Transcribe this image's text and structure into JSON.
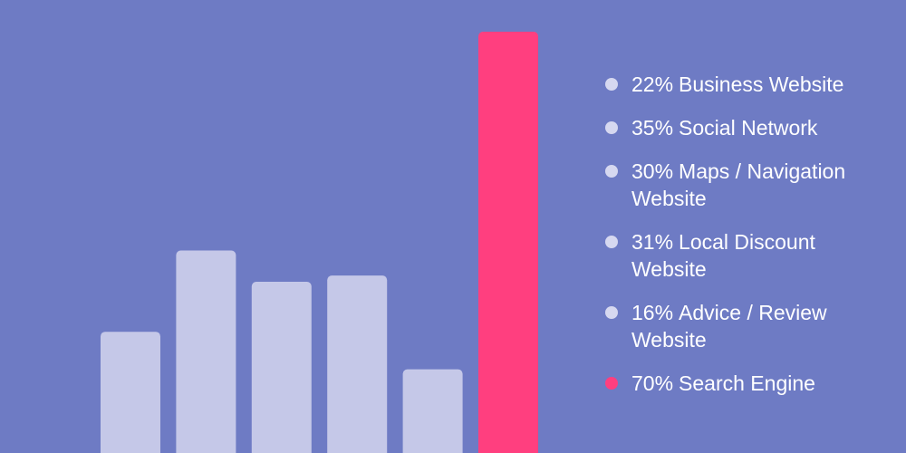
{
  "chart_data": {
    "type": "bar",
    "categories": [
      "Business Website",
      "Social Network",
      "Maps / Navigation Website",
      "Local Discount Website",
      "Advice / Review Website",
      "Search Engine"
    ],
    "values": [
      22,
      35,
      30,
      31,
      16,
      70
    ],
    "value_labels": [
      "22%",
      "35%",
      "30%",
      "31%",
      "16%",
      "70%"
    ],
    "colors": [
      "#c5c8e8",
      "#c5c8e8",
      "#c5c8e8",
      "#c5c8e8",
      "#c5c8e8",
      "#ff3f7f"
    ]
  }
}
